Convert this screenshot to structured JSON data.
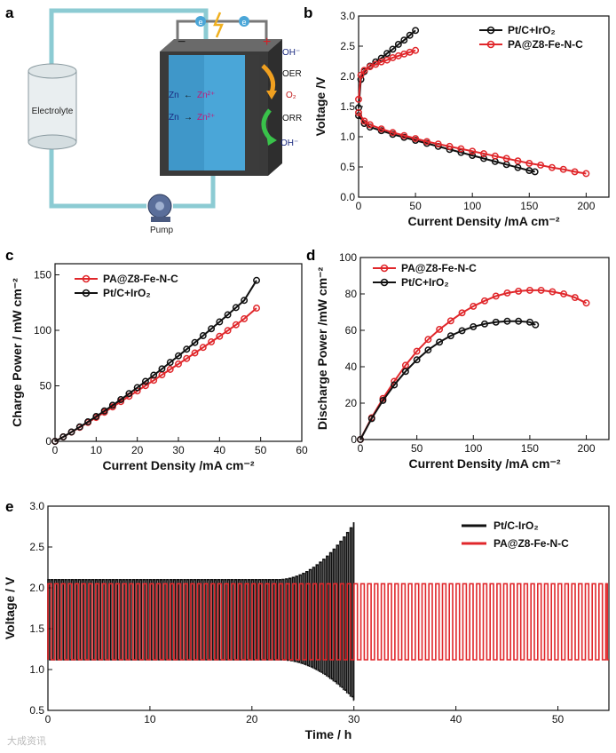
{
  "panels": {
    "a": "a",
    "b": "b",
    "c": "c",
    "d": "d",
    "e": "e"
  },
  "diagram": {
    "electrolyte_label": "Electrolyte",
    "pump_label": "Pump",
    "electron_label": "e",
    "minus_label": "−",
    "plus_label": "+",
    "oh_top": "OH⁻",
    "oer": "OER",
    "o2": "O₂",
    "orr": "ORR",
    "oh_bottom": "OH⁻",
    "zn1_left": "Zn",
    "zn1_right": "Zn²⁺",
    "zn2_left": "Zn",
    "zn2_right": "Zn²⁺",
    "colors": {
      "tube": "#8ccbd3",
      "cell_front": "#4aa6d8",
      "cell_dark": "#3a3a3a",
      "arrow_oer": "#f0a020",
      "arrow_orr": "#39c24a"
    }
  },
  "watermark": "大成资讯",
  "chart_data": [
    {
      "id": "b",
      "type": "line",
      "xlabel": "Current Density /mA cm⁻²",
      "ylabel": "Voltage /V",
      "xlim": [
        0,
        220
      ],
      "ylim": [
        0.0,
        3.0
      ],
      "xticks": [
        0,
        50,
        100,
        150,
        200
      ],
      "yticks": [
        0.0,
        0.5,
        1.0,
        1.5,
        2.0,
        2.5,
        3.0
      ],
      "ytick_labels": [
        "0.0",
        "0.5",
        "1.0",
        "1.5",
        "2.0",
        "2.5",
        "3.0"
      ],
      "legend": "top-right",
      "series": [
        {
          "name": "Pt/C+IrO₂",
          "color": "#111111",
          "x": [
            0,
            2,
            5,
            10,
            15,
            20,
            25,
            30,
            35,
            40,
            45,
            50
          ],
          "y": [
            1.48,
            1.95,
            2.08,
            2.17,
            2.24,
            2.3,
            2.38,
            2.45,
            2.53,
            2.6,
            2.68,
            2.76
          ]
        },
        {
          "name": "Pt/C+IrO₂ discharge",
          "color": "#111111",
          "legend": false,
          "x": [
            0,
            5,
            10,
            20,
            30,
            40,
            50,
            60,
            70,
            80,
            90,
            100,
            110,
            120,
            130,
            140,
            150,
            155
          ],
          "y": [
            1.35,
            1.22,
            1.16,
            1.1,
            1.04,
            0.99,
            0.94,
            0.89,
            0.84,
            0.79,
            0.74,
            0.69,
            0.64,
            0.59,
            0.54,
            0.49,
            0.44,
            0.42
          ]
        },
        {
          "name": "PA@Z8-Fe-N-C",
          "color": "#e0272b",
          "x": [
            0,
            2,
            5,
            10,
            15,
            20,
            25,
            30,
            35,
            40,
            45,
            50
          ],
          "y": [
            1.62,
            2.02,
            2.1,
            2.16,
            2.2,
            2.24,
            2.27,
            2.31,
            2.34,
            2.37,
            2.4,
            2.43
          ]
        },
        {
          "name": "PA@Z8-Fe-N-C discharge",
          "color": "#e0272b",
          "legend": false,
          "x": [
            0,
            5,
            10,
            20,
            30,
            40,
            50,
            60,
            70,
            80,
            90,
            100,
            110,
            120,
            130,
            140,
            150,
            160,
            170,
            180,
            190,
            200
          ],
          "y": [
            1.4,
            1.26,
            1.2,
            1.13,
            1.07,
            1.02,
            0.97,
            0.92,
            0.88,
            0.84,
            0.8,
            0.76,
            0.72,
            0.68,
            0.64,
            0.6,
            0.56,
            0.53,
            0.49,
            0.46,
            0.42,
            0.39
          ]
        }
      ]
    },
    {
      "id": "c",
      "type": "line",
      "xlabel": "Current Density /mA cm⁻²",
      "ylabel": "Charge Power / mW cm⁻²",
      "xlim": [
        0,
        60
      ],
      "ylim": [
        0,
        160
      ],
      "xticks": [
        0,
        10,
        20,
        30,
        40,
        50,
        60
      ],
      "yticks": [
        0,
        50,
        100,
        150
      ],
      "ytick_labels": [
        "0",
        "50",
        "100",
        "150"
      ],
      "legend": "top-left",
      "series": [
        {
          "name": "PA@Z8-Fe-N-C",
          "color": "#e0272b",
          "x": [
            0,
            2,
            4,
            6,
            8,
            10,
            12,
            14,
            16,
            18,
            20,
            22,
            24,
            26,
            28,
            30,
            32,
            34,
            36,
            38,
            40,
            42,
            44,
            46,
            49
          ],
          "y": [
            0,
            4,
            8.3,
            12.6,
            17,
            21.5,
            26.2,
            31,
            35.8,
            40.6,
            45.4,
            50.2,
            55,
            59.9,
            64.8,
            69.7,
            74.6,
            79.6,
            84.6,
            89.6,
            94.6,
            99.8,
            105,
            110.4,
            120
          ]
        },
        {
          "name": "Pt/C+IrO₂",
          "color": "#111111",
          "x": [
            0,
            2,
            4,
            6,
            8,
            10,
            12,
            14,
            16,
            18,
            20,
            22,
            24,
            26,
            28,
            30,
            32,
            34,
            36,
            38,
            40,
            42,
            44,
            46,
            49
          ],
          "y": [
            0,
            4,
            8.4,
            13,
            17.6,
            22.4,
            27.4,
            32.5,
            37.6,
            43,
            48.4,
            54,
            59.6,
            65.3,
            71.1,
            77,
            83,
            89,
            95.2,
            101.4,
            107.6,
            114,
            120.5,
            127,
            145
          ]
        }
      ]
    },
    {
      "id": "d",
      "type": "line",
      "xlabel": "Current Density /mA cm⁻²",
      "ylabel": "Discharge Power /mW cm⁻²",
      "xlim": [
        0,
        220
      ],
      "ylim": [
        0,
        100
      ],
      "xticks": [
        0,
        50,
        100,
        150,
        200
      ],
      "yticks": [
        0,
        20,
        40,
        60,
        80,
        100
      ],
      "ytick_labels": [
        "0",
        "20",
        "40",
        "60",
        "80",
        "100"
      ],
      "legend": "top-left",
      "series": [
        {
          "name": "PA@Z8-Fe-N-C",
          "color": "#e0272b",
          "x": [
            0,
            10,
            20,
            30,
            40,
            50,
            60,
            70,
            80,
            90,
            100,
            110,
            120,
            130,
            140,
            150,
            160,
            170,
            180,
            190,
            200
          ],
          "y": [
            0,
            12,
            22.6,
            32,
            40.8,
            48.5,
            55,
            60.5,
            65.2,
            69.6,
            73.2,
            76.2,
            78.8,
            80.5,
            81.5,
            82,
            82,
            81.2,
            80,
            78,
            75
          ]
        },
        {
          "name": "Pt/C+IrO₂",
          "color": "#111111",
          "x": [
            0,
            10,
            20,
            30,
            40,
            50,
            60,
            70,
            80,
            90,
            100,
            110,
            120,
            130,
            140,
            150,
            155
          ],
          "y": [
            0,
            11.5,
            21.5,
            30,
            37.4,
            43.8,
            49.2,
            53.5,
            57,
            59.8,
            62,
            63.5,
            64.5,
            65,
            65,
            64.5,
            63
          ]
        }
      ]
    },
    {
      "id": "e",
      "type": "line",
      "xlabel": "Time / h",
      "ylabel": "Voltage / V",
      "xlim": [
        0,
        55
      ],
      "ylim": [
        0.5,
        3.0
      ],
      "xticks": [
        0,
        10,
        20,
        30,
        40,
        50
      ],
      "yticks": [
        0.5,
        1.0,
        1.5,
        2.0,
        2.5,
        3.0
      ],
      "ytick_labels": [
        "0.5",
        "1.0",
        "1.5",
        "2.0",
        "2.5",
        "3.0"
      ],
      "legend": "top-right",
      "series": [
        {
          "name": "Pt/C-IrO₂",
          "color": "#111111",
          "cycle_period_h": 0.333,
          "t_end": 30,
          "charge_start": 2.1,
          "charge_end_at_30h": 2.8,
          "discharge_start": 1.12,
          "discharge_end_at_30h": 0.62
        },
        {
          "name": "PA@Z8-Fe-N-C",
          "color": "#e0272b",
          "cycle_period_h": 0.667,
          "t_end": 55,
          "charge": 2.05,
          "discharge": 1.12
        }
      ]
    }
  ]
}
